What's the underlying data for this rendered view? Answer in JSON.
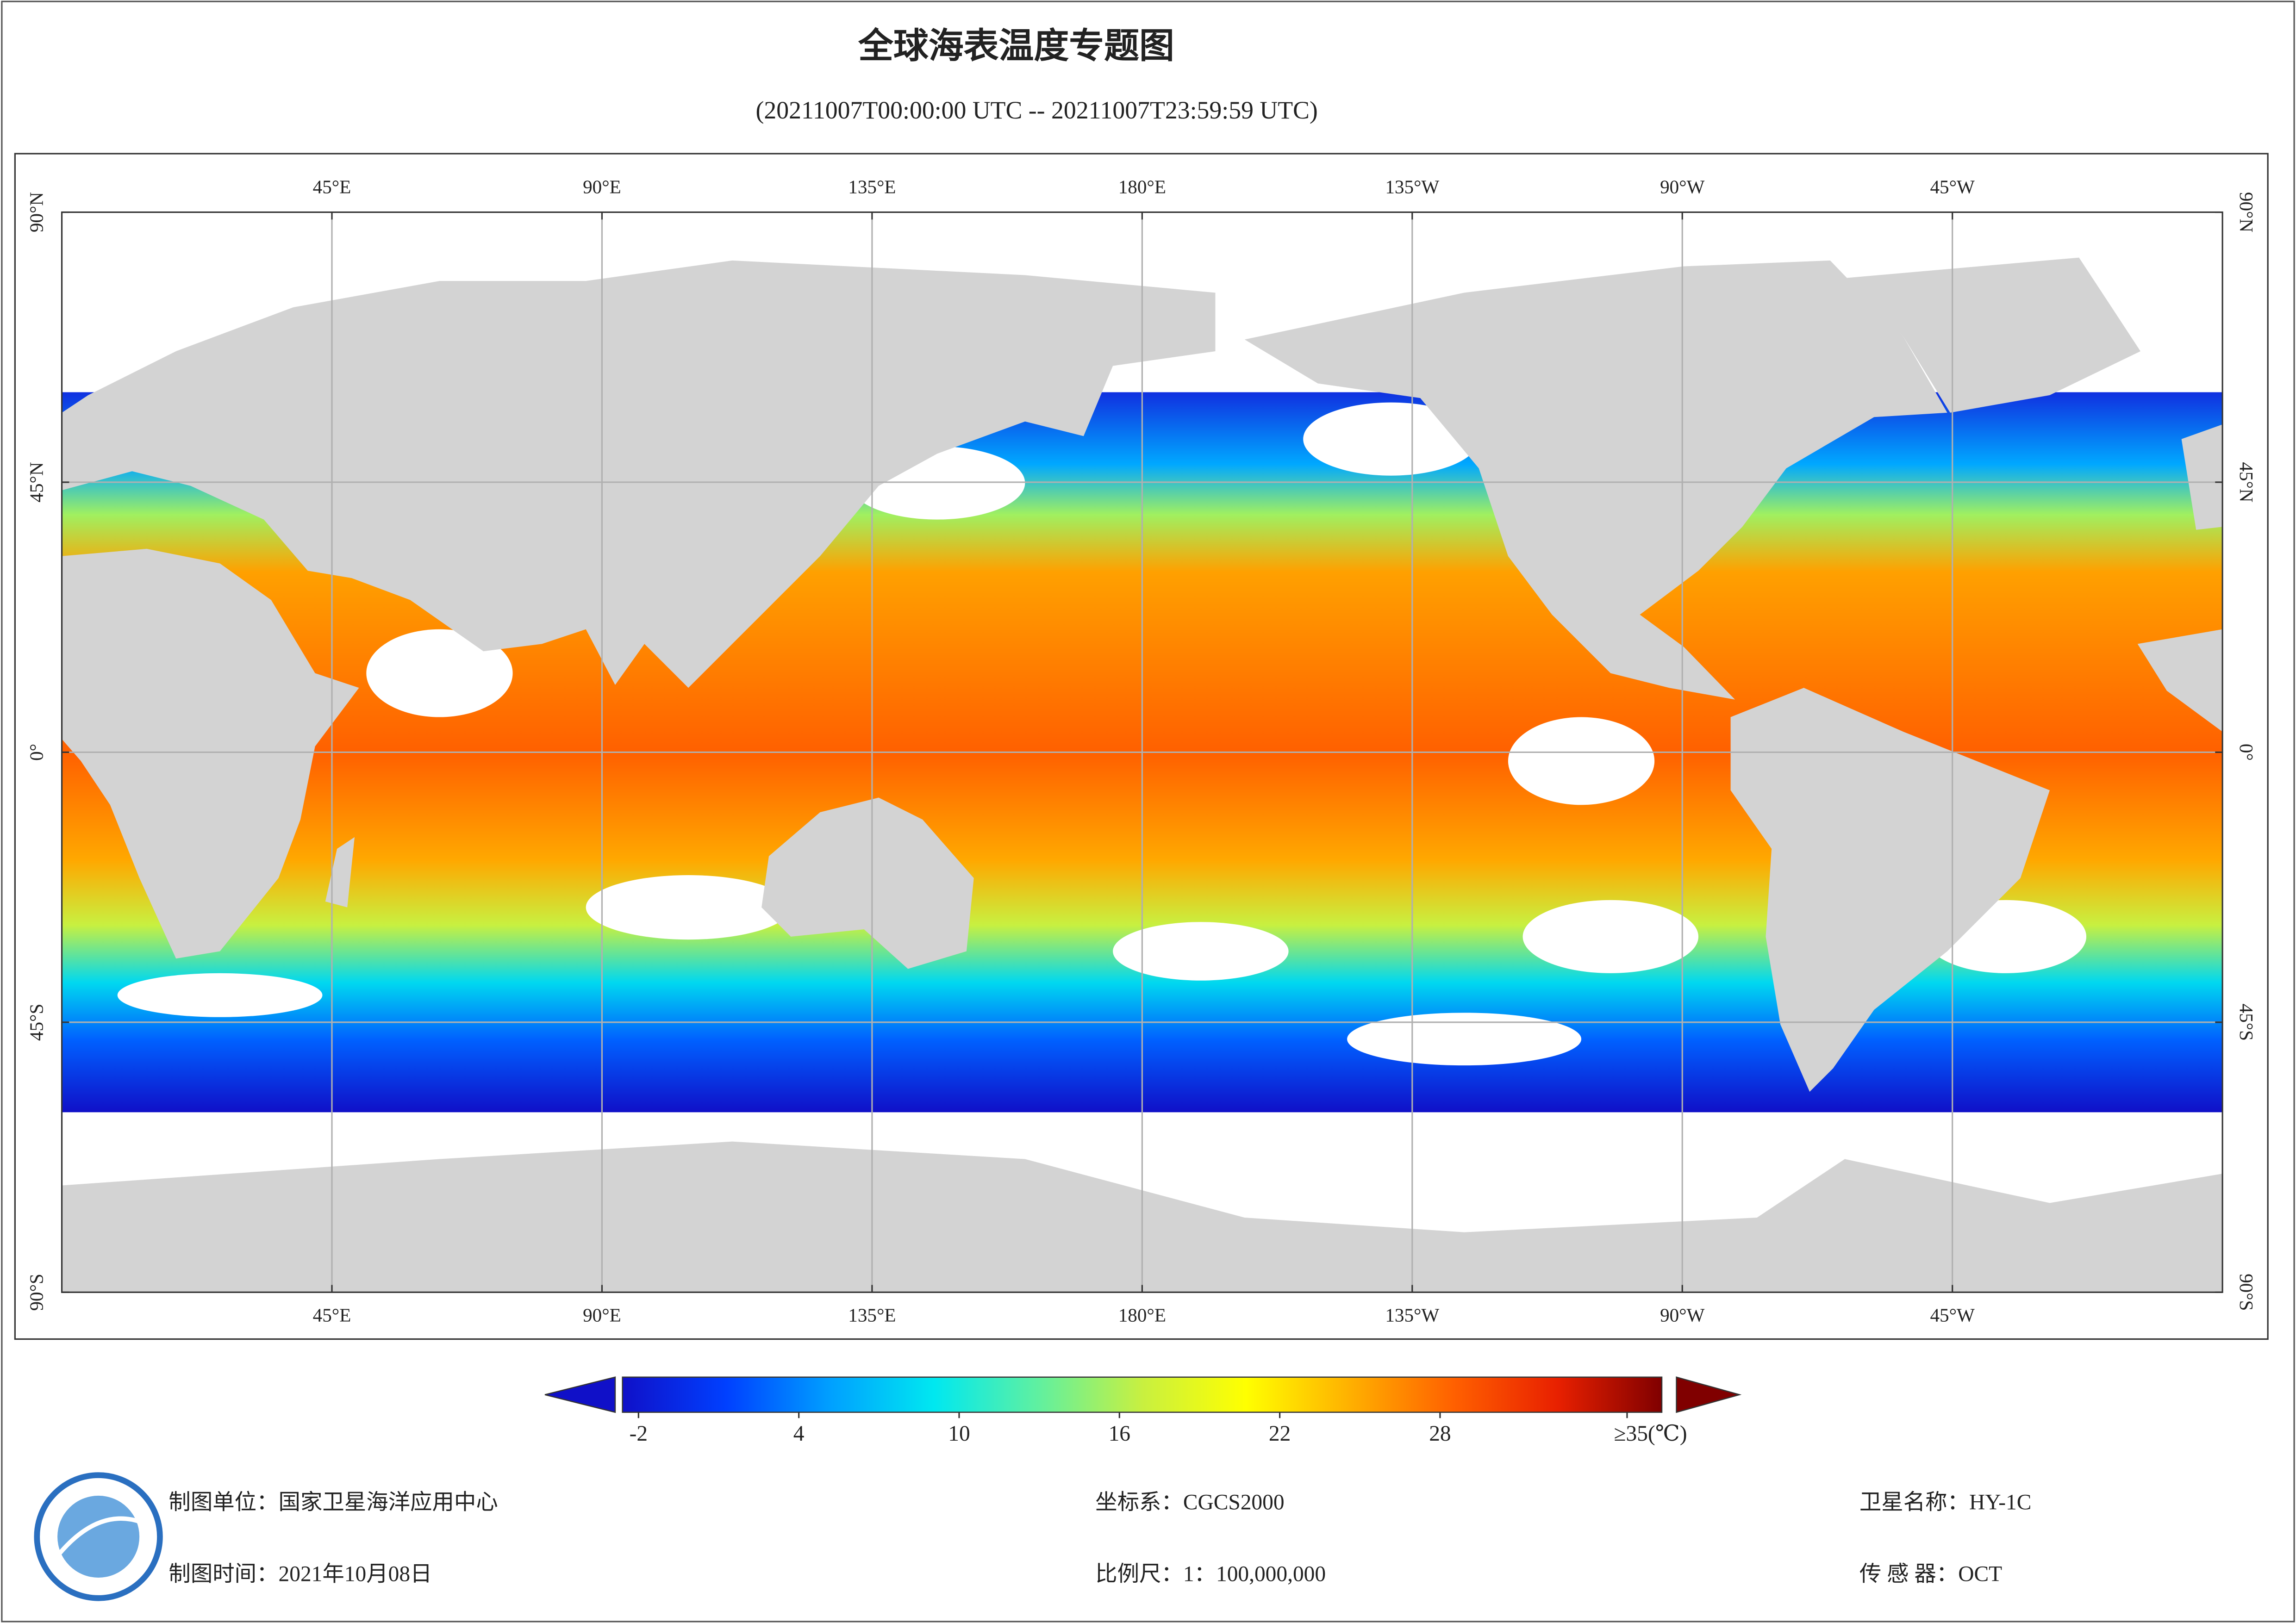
{
  "title": "全球海表温度专题图",
  "subtitle": "(20211007T00:00:00 UTC -- 20211007T23:59:59 UTC)",
  "map": {
    "xlim": [
      0,
      360
    ],
    "ylim": [
      -90,
      90
    ],
    "grid": true,
    "lon_ticks": [
      {
        "value": 45,
        "label": "45°E"
      },
      {
        "value": 90,
        "label": "90°E"
      },
      {
        "value": 135,
        "label": "135°E"
      },
      {
        "value": 180,
        "label": "180°E"
      },
      {
        "value": 225,
        "label": "135°W"
      },
      {
        "value": 270,
        "label": "90°W"
      },
      {
        "value": 315,
        "label": "45°W"
      }
    ],
    "lat_ticks": [
      {
        "value": 90,
        "label": "90°N"
      },
      {
        "value": 45,
        "label": "45°N"
      },
      {
        "value": 0,
        "label": "0°"
      },
      {
        "value": -45,
        "label": "45°S"
      },
      {
        "value": -90,
        "label": "90°S"
      }
    ]
  },
  "colorbar": {
    "lim": [
      -2.6,
      36.3
    ],
    "ticks": [
      -2,
      4,
      10,
      16,
      22,
      28,
      {
        "value": 35,
        "label": "≥35(℃)"
      }
    ],
    "colors": [
      "#1010c8",
      "#0040ff",
      "#00a0ff",
      "#00e8f0",
      "#60f0a0",
      "#c8f040",
      "#ffff00",
      "#ffb000",
      "#ff6000",
      "#e82000",
      "#800000"
    ]
  },
  "footer": {
    "unit": "制图单位：国家卫星海洋应用中心",
    "date": "制图时间：2021年10月08日",
    "crs": "坐标系：CGCS2000",
    "scale": "比例尺：1：100,000,000",
    "satellite": "卫星名称：HY-1C",
    "sensor": "传 感 器：OCT"
  }
}
